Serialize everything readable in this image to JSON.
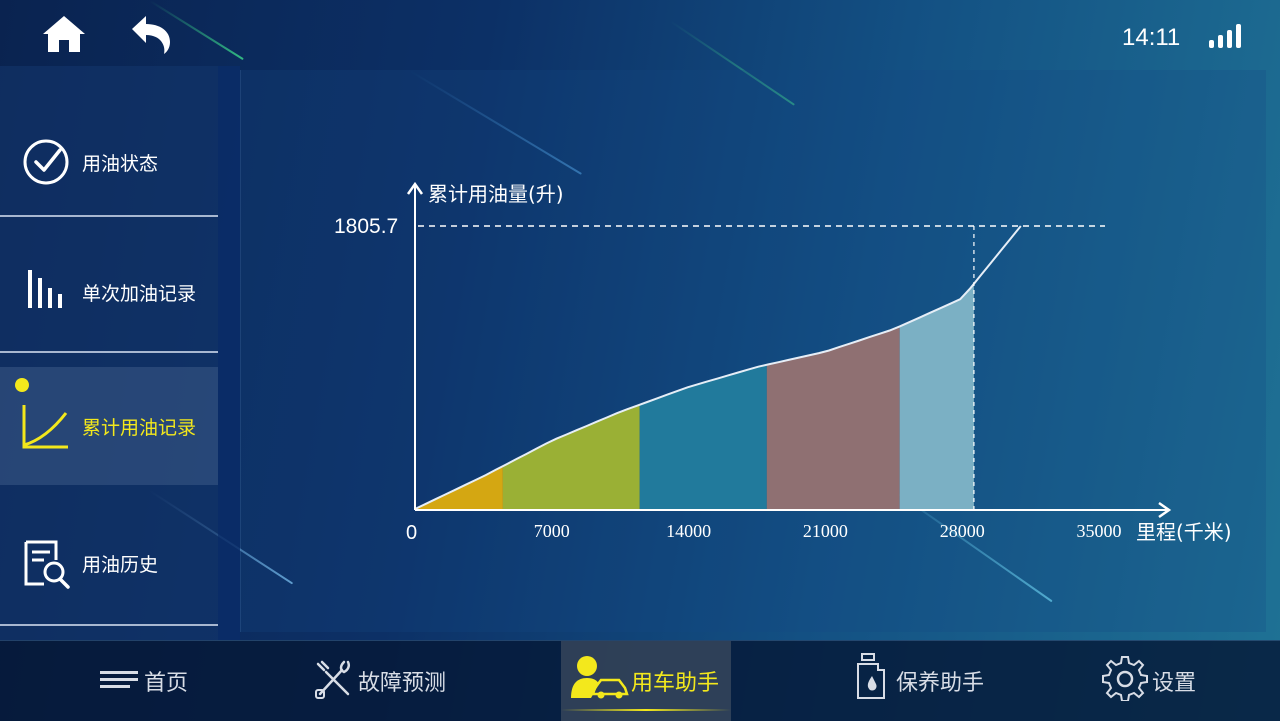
{
  "topbar": {
    "time": "14:11",
    "home_icon": "home-icon",
    "back_icon": "back-arrow-icon",
    "signal_icon": "signal-strength-icon"
  },
  "sidebar": {
    "items": [
      {
        "label": "用油状态",
        "icon": "check-circle-icon"
      },
      {
        "label": "单次加油记录",
        "icon": "bar-chart-icon"
      },
      {
        "label": "累计用油记录",
        "icon": "line-chart-icon",
        "active": true
      },
      {
        "label": "用油历史",
        "icon": "document-search-icon"
      }
    ]
  },
  "colors": {
    "accent": "#f3e81c",
    "seg1": "#d4a712",
    "seg2": "#9ab035",
    "seg3": "#217a9c",
    "seg4": "#8f7072",
    "seg5": "#7bb0c4"
  },
  "chart_data": {
    "type": "area",
    "ylabel": "累计用油量(升)",
    "xlabel": "里程(千米)",
    "origin_label": "0",
    "max_label": "1805.7",
    "x_ticks": [
      "7000",
      "14000",
      "21000",
      "28000",
      "35000"
    ],
    "xlim": [
      0,
      35000
    ],
    "ylim": [
      0,
      1805.7
    ],
    "x": [
      0,
      3500,
      7000,
      10500,
      14000,
      17500,
      21000,
      24500,
      28000,
      31000
    ],
    "y": [
      0,
      209,
      436,
      620,
      779,
      906,
      1004,
      1148,
      1344,
      1805.7
    ],
    "segments": [
      {
        "from": 0,
        "to": 4500,
        "color": "#d4a712"
      },
      {
        "from": 4500,
        "to": 11500,
        "color": "#9ab035"
      },
      {
        "from": 11500,
        "to": 18000,
        "color": "#217a9c"
      },
      {
        "from": 18000,
        "to": 24800,
        "color": "#8f7072"
      },
      {
        "from": 24800,
        "to": 28600,
        "color": "#7bb0c4"
      }
    ]
  },
  "bottom_tabs": [
    {
      "label": "首页",
      "icon": "home-lines-icon"
    },
    {
      "label": "故障预测",
      "icon": "tools-icon"
    },
    {
      "label": "用车助手",
      "icon": "driver-car-icon",
      "active": true
    },
    {
      "label": "保养助手",
      "icon": "oil-bottle-icon"
    },
    {
      "label": "设置",
      "icon": "gear-icon"
    }
  ]
}
